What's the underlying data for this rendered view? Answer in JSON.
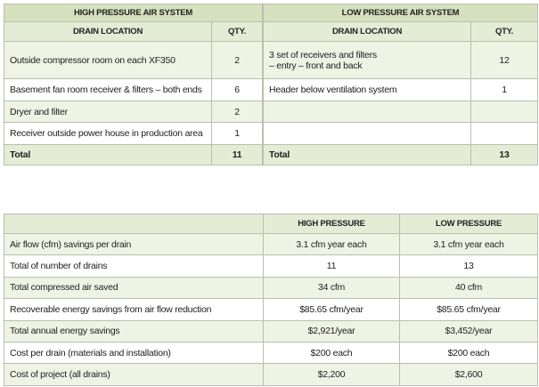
{
  "high_pressure_table": {
    "title": "HIGH PRESSURE AIR SYSTEM",
    "columns": [
      "DRAIN LOCATION",
      "QTY."
    ],
    "rows": [
      {
        "location": "Outside compressor room on each XF350",
        "qty": 2
      },
      {
        "location": "Basement fan room receiver & filters – both ends",
        "qty": 6
      },
      {
        "location": "Dryer and filter",
        "qty": 2
      },
      {
        "location": "Receiver outside power house in production area",
        "qty": 1
      }
    ],
    "total": {
      "label": "Total",
      "qty": 11
    }
  },
  "low_pressure_table": {
    "title": "LOW PRESSURE AIR SYSTEM",
    "columns": [
      "DRAIN LOCATION",
      "QTY."
    ],
    "rows": [
      {
        "location": [
          "3 set of receivers and filters",
          "– entry – front and back"
        ],
        "qty": 12
      },
      {
        "location": "Header below ventilation system",
        "qty": 1
      }
    ],
    "total": {
      "label": "Total",
      "qty": 13
    }
  },
  "savings_table": {
    "columns": [
      "HIGH PRESSURE",
      "LOW PRESSURE"
    ],
    "rows": [
      [
        "Air flow (cfm) savings per drain",
        "3.1 cfm year each",
        "3.1 cfm year each"
      ],
      [
        "Total of number of drains",
        "11",
        "13"
      ],
      [
        "Total compressed air saved",
        "34 cfm",
        "40 cfm"
      ],
      [
        "Recoverable energy savings from air flow reduction",
        "$85.65 cfm/year",
        "$85.65 cfm/year"
      ],
      [
        "Total annual energy savings",
        "$2,921/year",
        "$3,452/year"
      ],
      [
        "Cost per drain (materials and installation)",
        "$200 each",
        "$200 each"
      ],
      [
        "Cost of project (all drains)",
        "$2,200",
        "$2,600"
      ]
    ]
  }
}
